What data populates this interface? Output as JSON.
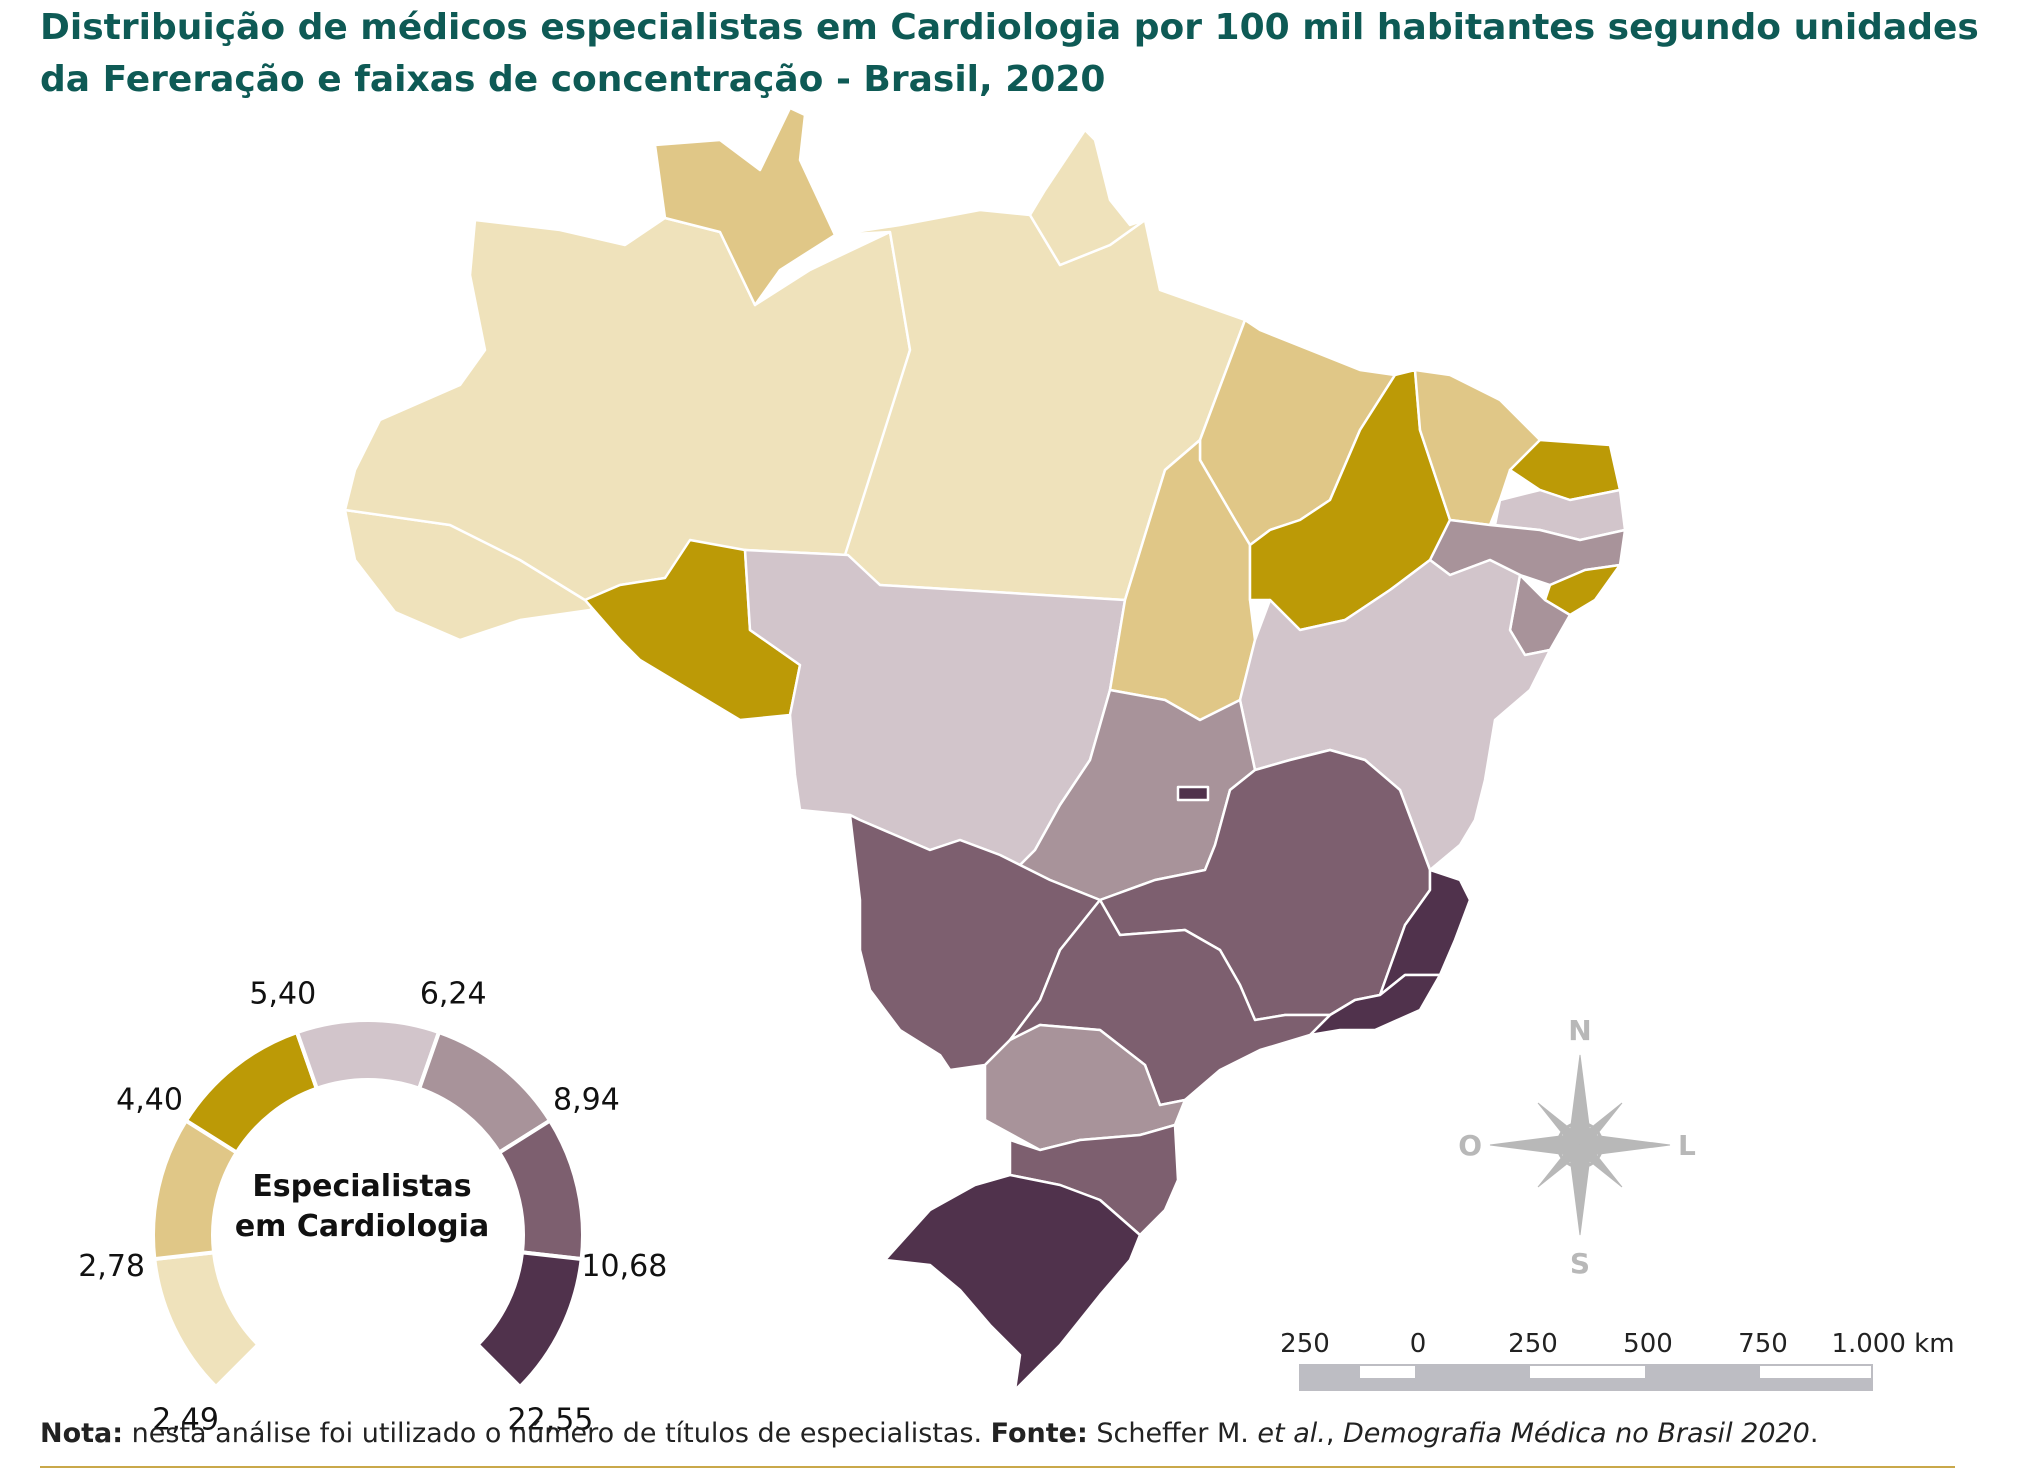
{
  "title": "Distribuição de médicos especialistas em Cardiologia por 100 mil habitantes segundo unidades da Fereração e faixas de concentração - Brasil, 2020",
  "colors": {
    "class1": "#efe2bb",
    "class2": "#e0c787",
    "class3": "#bc9a06",
    "class4": "#d2c5cb",
    "class5": "#a8939a",
    "class6": "#7d5f6f",
    "class7": "#50324c",
    "border": "#ffffff",
    "title": "#0e5a55",
    "compass": "#b8b8b8",
    "scale_dark": "#bdbdc3"
  },
  "legend": {
    "title_line1": "Especialistas",
    "title_line2": "em Cardiologia",
    "breaks": [
      "2,49",
      "2,78",
      "4,40",
      "5,40",
      "6,24",
      "8,94",
      "10,68",
      "22,55"
    ]
  },
  "states": [
    {
      "uf": "AC",
      "class": 1
    },
    {
      "uf": "AM",
      "class": 1
    },
    {
      "uf": "RR",
      "class": 2
    },
    {
      "uf": "PA",
      "class": 1
    },
    {
      "uf": "AP",
      "class": 1
    },
    {
      "uf": "RO",
      "class": 3
    },
    {
      "uf": "TO",
      "class": 2
    },
    {
      "uf": "MA",
      "class": 2
    },
    {
      "uf": "PI",
      "class": 3
    },
    {
      "uf": "CE",
      "class": 2
    },
    {
      "uf": "RN",
      "class": 3
    },
    {
      "uf": "PB",
      "class": 4
    },
    {
      "uf": "PE",
      "class": 5
    },
    {
      "uf": "AL",
      "class": 3
    },
    {
      "uf": "SE",
      "class": 5
    },
    {
      "uf": "BA",
      "class": 4
    },
    {
      "uf": "MT",
      "class": 4
    },
    {
      "uf": "GO",
      "class": 5
    },
    {
      "uf": "DF",
      "class": 7
    },
    {
      "uf": "MS",
      "class": 6
    },
    {
      "uf": "MG",
      "class": 6
    },
    {
      "uf": "ES",
      "class": 7
    },
    {
      "uf": "RJ",
      "class": 7
    },
    {
      "uf": "SP",
      "class": 6
    },
    {
      "uf": "PR",
      "class": 5
    },
    {
      "uf": "SC",
      "class": 6
    },
    {
      "uf": "RS",
      "class": 7
    }
  ],
  "compass": {
    "n": "N",
    "s": "S",
    "e": "L",
    "w": "O"
  },
  "scale_bar": {
    "labels": [
      "250",
      "0",
      "250",
      "500",
      "750",
      "1.000 km"
    ]
  },
  "note": {
    "label": "Nota:",
    "text": " nesta análise foi utilizado o número de títulos de especialistas. ",
    "source_label": "Fonte:",
    "source_text": " Scheffer M. ",
    "source_etal": "et al.",
    "source_comma": ", ",
    "source_pub": "Demografia Médica no Brasil 2020",
    "source_end": "."
  }
}
